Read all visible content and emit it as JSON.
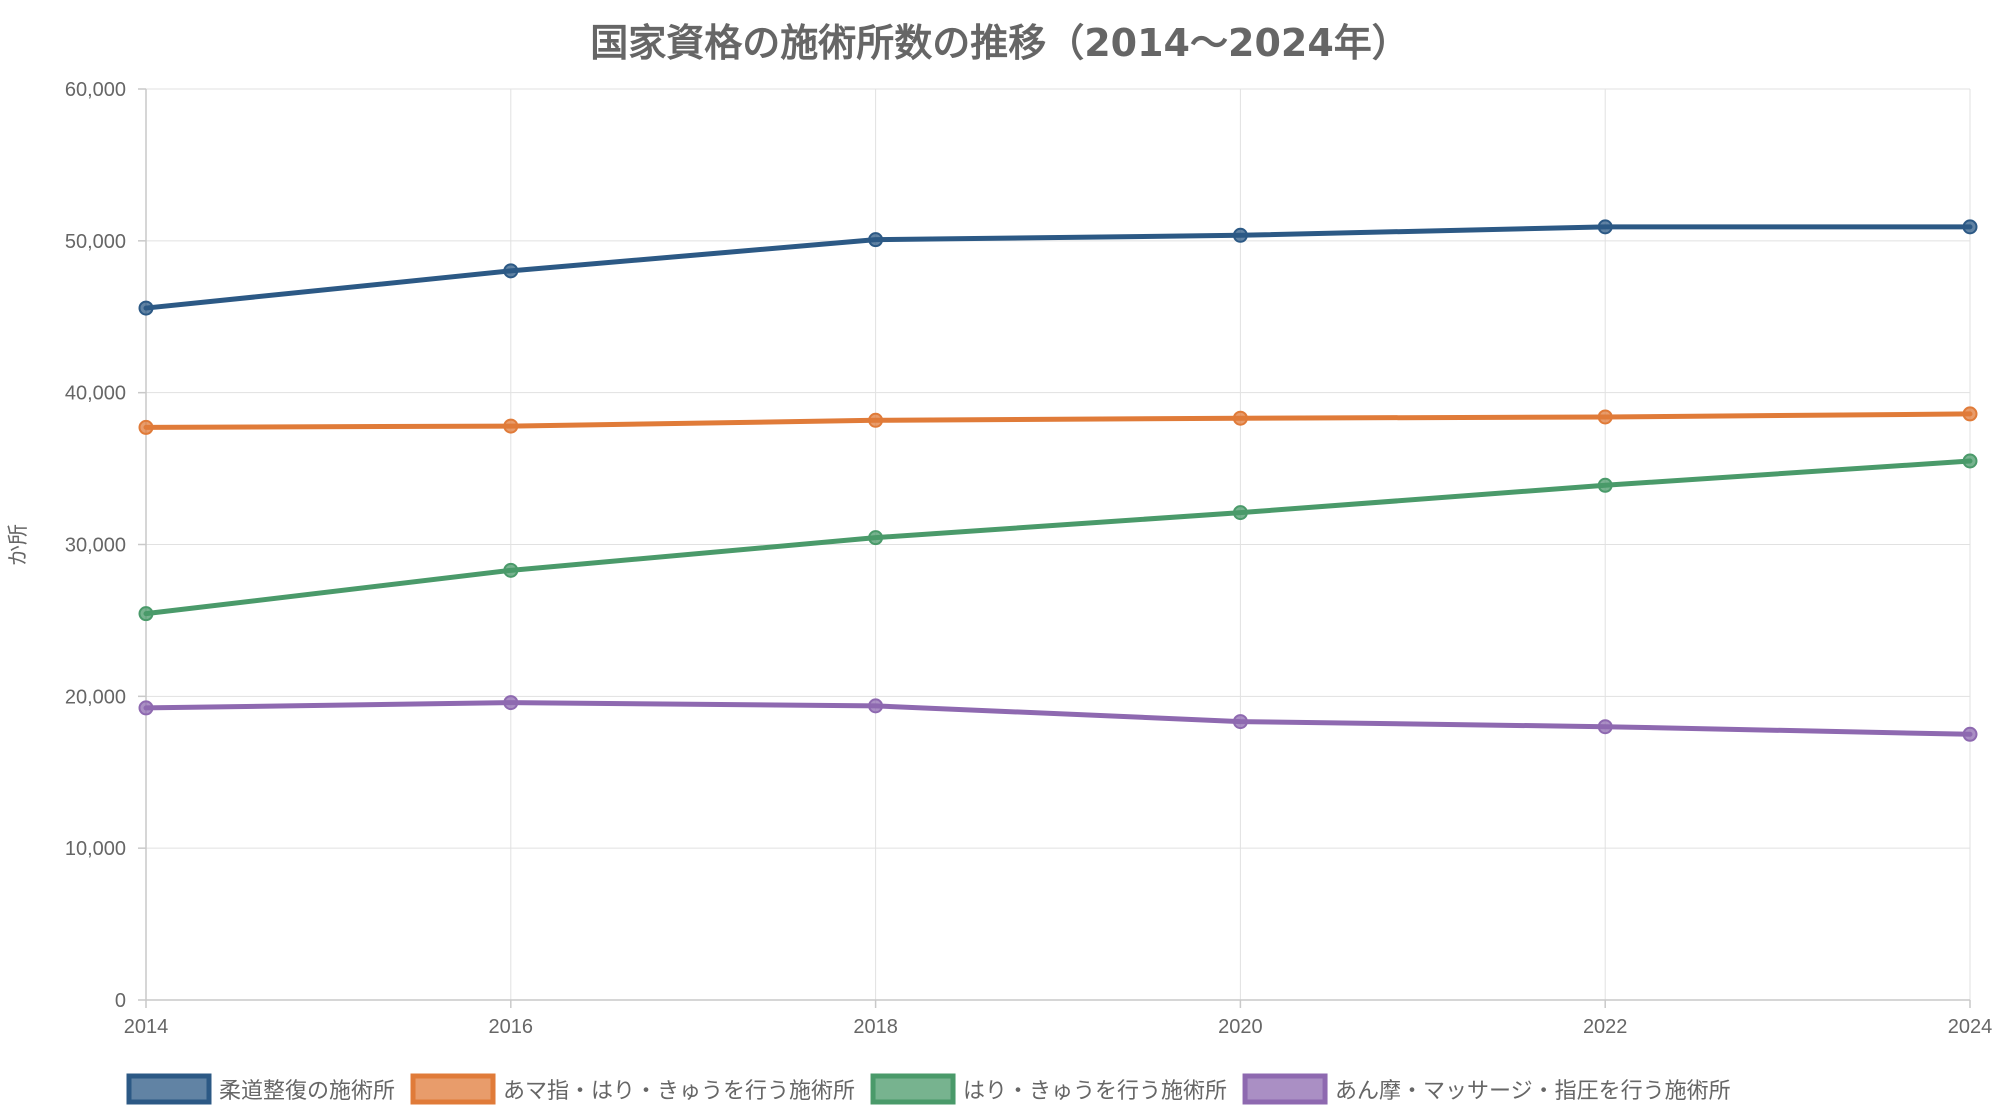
{
  "chart_data": {
    "type": "line",
    "title": "国家資格の施術所数の推移（2014〜2024年）",
    "ylabel": "か所",
    "xlabel": "",
    "x": [
      2014,
      2016,
      2018,
      2020,
      2022,
      2024
    ],
    "x_ticks": [
      "2014",
      "2016",
      "2018",
      "2020",
      "2022",
      "2024"
    ],
    "ylim": [
      0,
      60000
    ],
    "y_ticks": [
      "0",
      "10,000",
      "20,000",
      "30,000",
      "40,000",
      "50,000",
      "60,000"
    ],
    "grid": true,
    "legend_position": "bottom",
    "series": [
      {
        "name": "柔道整復の施術所",
        "color": "#2c5985",
        "values": [
          45572,
          48024,
          50077,
          50364,
          50919,
          50919
        ]
      },
      {
        "name": "あマ指・はり・きゅうを行う施術所",
        "color": "#e07b39",
        "values": [
          37713,
          37800,
          38180,
          38316,
          38400,
          38600
        ]
      },
      {
        "name": "はり・きゅうを行う施術所",
        "color": "#4a9a6a",
        "values": [
          25445,
          28299,
          30450,
          32099,
          33900,
          35500
        ]
      },
      {
        "name": "あん摩・マッサージ・指圧を行う施術所",
        "color": "#8e69b0",
        "values": [
          19236,
          19588,
          19371,
          18338,
          18000,
          17500
        ]
      }
    ]
  }
}
